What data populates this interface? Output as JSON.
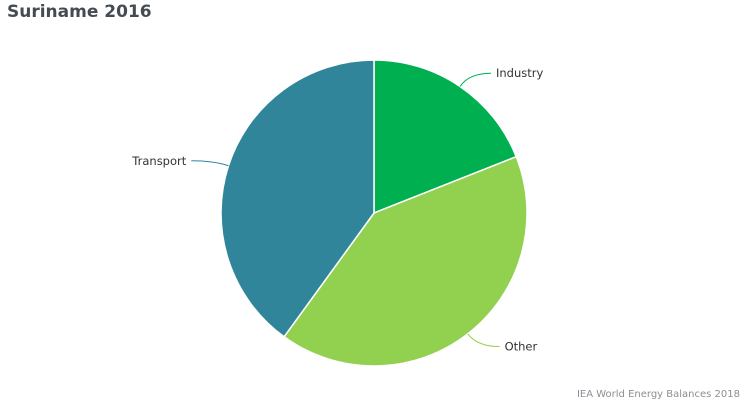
{
  "chart_data": {
    "type": "pie",
    "title": "Suriname 2016",
    "categories": [
      "Industry",
      "Other",
      "Transport"
    ],
    "values": [
      19.0,
      41.0,
      40.0
    ],
    "colors": [
      "#00b050",
      "#92d050",
      "#31859b"
    ],
    "legend": "none"
  },
  "source": "IEA World Energy Balances 2018"
}
